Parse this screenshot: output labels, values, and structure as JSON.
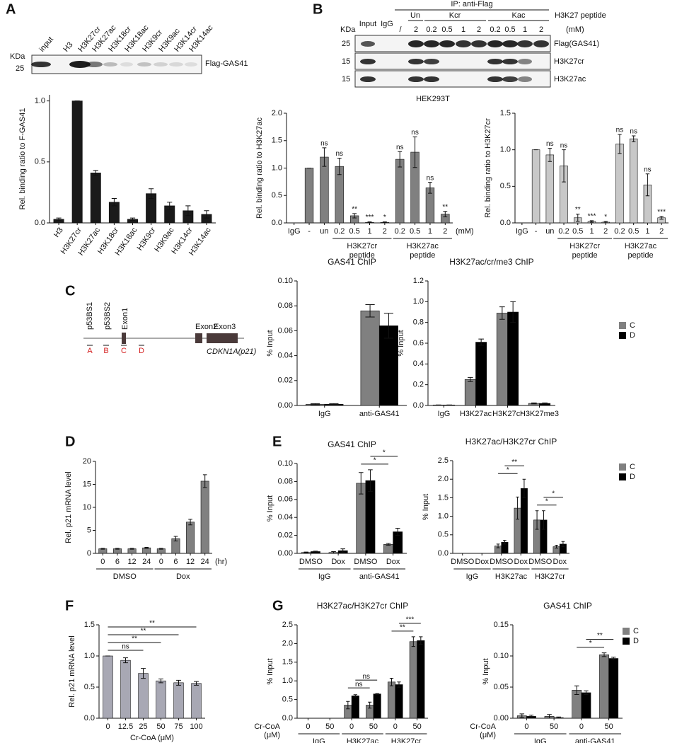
{
  "panels": [
    "A",
    "B",
    "C",
    "D",
    "E",
    "F",
    "G"
  ],
  "blot_a": {
    "kda": "KDa",
    "marker": "25",
    "label": "Flag-GAS41",
    "lanes": [
      "input",
      "H3",
      "H3K27cr",
      "H3K27ac",
      "H3K18cr",
      "H3K18ac",
      "H3K9cr",
      "H3K9ac",
      "H3K14cr",
      "H3K14ac"
    ]
  },
  "blot_b": {
    "header": "IP: anti-Flag",
    "peptide": "H3K27 peptide",
    "unit": "(mM)",
    "kda": "KDa",
    "groups": [
      "Un",
      "Kcr",
      "Kac"
    ],
    "lanes": [
      "Input",
      "IgG",
      "/",
      "2",
      "0.2",
      "0.5",
      "1",
      "2",
      "0.2",
      "0.5",
      "1",
      "2"
    ],
    "rows": [
      {
        "kda": "25",
        "label": "Flag(GAS41)"
      },
      {
        "kda": "15",
        "label": "H3K27cr"
      },
      {
        "kda": "15",
        "label": "H3K27ac"
      }
    ],
    "cell": "HEK293T"
  },
  "gene_diagram": {
    "sites": [
      "p53BS1",
      "p53BS2",
      "Exon1"
    ],
    "exons": [
      "Exon2",
      "Exon3"
    ],
    "primers": [
      "A",
      "B",
      "C",
      "D"
    ],
    "gene": "CDKN1A(p21)"
  },
  "chart_data": [
    {
      "type": "bar",
      "ylabel": "Rel. binding ratio to F-GAS41",
      "categories": [
        "H3",
        "H3K27cr",
        "H3K27ac",
        "H3K18cr",
        "H3K18ac",
        "H3K9cr",
        "H3K9ac",
        "H3K14cr",
        "H3K14ac"
      ],
      "values": [
        0.03,
        1.0,
        0.41,
        0.17,
        0.03,
        0.24,
        0.14,
        0.1,
        0.07
      ],
      "errors": [
        0.01,
        0,
        0.02,
        0.03,
        0.01,
        0.04,
        0.03,
        0.04,
        0.03
      ],
      "color": "#1a1a1a",
      "ylim": [
        0,
        1.05
      ],
      "yticks": [
        {
          "value": 0,
          "label": "0.0"
        },
        0.5,
        {
          "value": 1,
          "label": "1.0"
        }
      ]
    },
    {
      "type": "bar",
      "ylabel": "Rel. binding ratio to H3K27ac",
      "categories": [
        "IgG",
        "-",
        "un",
        "0.2",
        "0.5",
        "1",
        "2",
        "0.2",
        "0.5",
        "1",
        "2"
      ],
      "values": [
        0,
        1.0,
        1.2,
        1.03,
        0.13,
        0.01,
        0.01,
        1.16,
        1.29,
        0.64,
        0.16
      ],
      "errors": [
        0,
        0,
        0.17,
        0.15,
        0.04,
        0.01,
        0.01,
        0.14,
        0.28,
        0.1,
        0.05
      ],
      "sig": [
        null,
        null,
        "ns",
        "ns",
        "**",
        "***",
        "*",
        "ns",
        "ns",
        "ns",
        "**"
      ],
      "groups": [
        {
          "label": "H3K27cr",
          "sublabel": "peptide",
          "start": 3,
          "end": 6
        },
        {
          "label": "H3K27ac",
          "sublabel": "peptide",
          "start": 7,
          "end": 10
        }
      ],
      "unit": "(mM)",
      "color": "#808080",
      "ylim": [
        0,
        2
      ],
      "yticks": [
        {
          "value": 0,
          "label": "0.0"
        },
        0.5,
        {
          "value": 1,
          "label": "1.0"
        },
        1.5,
        {
          "value": 2,
          "label": "2.0"
        }
      ]
    },
    {
      "type": "bar",
      "ylabel": "Rel. binding ratio to H3K27cr",
      "categories": [
        "IgG",
        "-",
        "un",
        "0.2",
        "0.5",
        "1",
        "2",
        "0.2",
        "0.5",
        "1",
        "2"
      ],
      "values": [
        0,
        1.0,
        0.93,
        0.78,
        0.07,
        0.02,
        0.01,
        1.08,
        1.15,
        0.52,
        0.07
      ],
      "errors": [
        0,
        0,
        0.09,
        0.22,
        0.05,
        0.01,
        0.01,
        0.13,
        0.04,
        0.15,
        0.02
      ],
      "sig": [
        null,
        null,
        "ns",
        "ns",
        "**",
        "***",
        "*",
        "ns",
        "ns",
        "ns",
        "***"
      ],
      "groups": [
        {
          "label": "H3K27cr",
          "sublabel": "peptide",
          "start": 3,
          "end": 6
        },
        {
          "label": "H3K27ac",
          "sublabel": "peptide",
          "start": 7,
          "end": 10
        }
      ],
      "color": "#c8c8c8",
      "ylim": [
        0,
        1.5
      ],
      "yticks": [
        {
          "value": 0,
          "label": "0.0"
        },
        0.5,
        {
          "value": 1,
          "label": "1.0"
        },
        1.5
      ]
    },
    {
      "type": "bar",
      "title": "GAS41 ChIP",
      "ylabel": "% Input",
      "categories": [
        "IgG",
        "anti-GAS41"
      ],
      "series": [
        {
          "name": "C",
          "color": "#808080",
          "values": [
            0.001,
            0.076
          ],
          "errors": [
            0.0005,
            0.005
          ]
        },
        {
          "name": "D",
          "color": "#000000",
          "values": [
            0.001,
            0.064
          ],
          "errors": [
            0.0005,
            0.01
          ]
        }
      ],
      "ylim": [
        0,
        0.1
      ],
      "yticks": [
        {
          "value": 0,
          "label": "0.00"
        },
        0.02,
        0.04,
        0.06,
        0.08,
        {
          "value": 0.1,
          "label": "0.10"
        }
      ]
    },
    {
      "type": "bar",
      "title": "H3K27ac/cr/me3 ChIP",
      "ylabel": "% Input",
      "categories": [
        "IgG",
        "H3K27ac",
        "H3K27cr",
        "H3K27me3"
      ],
      "series": [
        {
          "name": "C",
          "color": "#808080",
          "values": [
            0.005,
            0.25,
            0.89,
            0.02
          ],
          "errors": [
            0,
            0.02,
            0.06,
            0.005
          ]
        },
        {
          "name": "D",
          "color": "#000000",
          "values": [
            0.005,
            0.61,
            0.9,
            0.02
          ],
          "errors": [
            0,
            0.03,
            0.1,
            0.005
          ]
        }
      ],
      "legend": "right",
      "ylim": [
        0,
        1.2
      ],
      "yticks": [
        {
          "value": 0,
          "label": "0.0"
        },
        0.2,
        0.4,
        0.6,
        0.8,
        {
          "value": 1,
          "label": "1.0"
        },
        1.2
      ]
    },
    {
      "type": "bar",
      "ylabel": "Rel. p21 mRNA level",
      "categories": [
        "0",
        "6",
        "12",
        "24",
        "0",
        "6",
        "12",
        "24"
      ],
      "values": [
        1,
        1,
        1,
        1.2,
        1,
        3.2,
        6.8,
        15.7
      ],
      "errors": [
        0.1,
        0.1,
        0.1,
        0.1,
        0.1,
        0.5,
        0.6,
        1.4
      ],
      "groups": [
        {
          "label": "DMSO",
          "start": 0,
          "end": 3
        },
        {
          "label": "Dox",
          "start": 4,
          "end": 7
        }
      ],
      "unit": "(hr)",
      "color": "#808080",
      "ylim": [
        0,
        20
      ],
      "yticks": [
        0,
        5,
        10,
        15,
        20
      ]
    },
    {
      "type": "bar",
      "title": "GAS41 ChIP",
      "ylabel": "% Input",
      "categories": [
        "DMSO",
        "Dox",
        "DMSO",
        "Dox"
      ],
      "series": [
        {
          "name": "C",
          "color": "#808080",
          "values": [
            0.001,
            0.001,
            0.078,
            0.01
          ],
          "errors": [
            0.0005,
            0.001,
            0.012,
            0.001
          ]
        },
        {
          "name": "D",
          "color": "#000000",
          "values": [
            0.002,
            0.003,
            0.081,
            0.024
          ],
          "errors": [
            0.0005,
            0.002,
            0.012,
            0.004
          ]
        }
      ],
      "groups": [
        {
          "label": "IgG",
          "start": 0,
          "end": 1
        },
        {
          "label": "anti-GAS41",
          "start": 2,
          "end": 3
        }
      ],
      "brackets": [
        {
          "from": [
            2,
            0
          ],
          "to": [
            3,
            0
          ],
          "label": "*"
        },
        {
          "from": [
            2,
            1
          ],
          "to": [
            3,
            1
          ],
          "label": "*"
        }
      ],
      "ylim": [
        0,
        0.1
      ],
      "yticks": [
        {
          "value": 0,
          "label": "0.00"
        },
        0.02,
        0.04,
        0.06,
        0.08,
        {
          "value": 0.1,
          "label": "0.10"
        }
      ]
    },
    {
      "type": "bar",
      "title": "H3K27ac/H3K27cr ChIP",
      "ylabel": "% Input",
      "categories": [
        "DMSO",
        "Dox",
        "DMSO",
        "Dox",
        "DMSO",
        "Dox"
      ],
      "series": [
        {
          "name": "C",
          "color": "#808080",
          "values": [
            0,
            0,
            0.2,
            1.22,
            0.9,
            0.18
          ],
          "errors": [
            0,
            0,
            0.05,
            0.3,
            0.25,
            0.04
          ]
        },
        {
          "name": "D",
          "color": "#000000",
          "values": [
            0,
            0,
            0.3,
            1.75,
            0.9,
            0.25
          ],
          "errors": [
            0,
            0,
            0.05,
            0.25,
            0.25,
            0.07
          ]
        }
      ],
      "groups": [
        {
          "label": "IgG",
          "start": 0,
          "end": 1
        },
        {
          "label": "H3K27ac",
          "start": 2,
          "end": 3
        },
        {
          "label": "H3K27cr",
          "start": 4,
          "end": 5
        }
      ],
      "brackets": [
        {
          "from": [
            2,
            0
          ],
          "to": [
            3,
            0
          ],
          "label": "*"
        },
        {
          "from": [
            2,
            1
          ],
          "to": [
            3,
            1
          ],
          "label": "**"
        },
        {
          "from": [
            4,
            0
          ],
          "to": [
            5,
            0
          ],
          "label": "*"
        },
        {
          "from": [
            4,
            1
          ],
          "to": [
            5,
            1
          ],
          "label": "*"
        }
      ],
      "legend": "right",
      "ylim": [
        0,
        2.5
      ],
      "yticks": [
        {
          "value": 0,
          "label": "0.0"
        },
        0.5,
        {
          "value": 1,
          "label": "1.0"
        },
        1.5,
        {
          "value": 2,
          "label": "2.0"
        },
        2.5
      ]
    },
    {
      "type": "bar",
      "ylabel": "Rel. p21 mRNA level",
      "xlabel": "Cr-CoA (μM)",
      "categories": [
        "0",
        "12.5",
        "25",
        "50",
        "75",
        "100"
      ],
      "values": [
        1.0,
        0.93,
        0.72,
        0.6,
        0.57,
        0.56
      ],
      "errors": [
        0,
        0.04,
        0.08,
        0.03,
        0.04,
        0.03
      ],
      "brackets": [
        {
          "from": [
            0,
            0
          ],
          "to": [
            2,
            0
          ],
          "label": "ns"
        },
        {
          "from": [
            0,
            0
          ],
          "to": [
            3,
            0
          ],
          "label": "**"
        },
        {
          "from": [
            0,
            0
          ],
          "to": [
            4,
            0
          ],
          "label": "**"
        },
        {
          "from": [
            0,
            0
          ],
          "to": [
            5,
            0
          ],
          "label": "**"
        }
      ],
      "color": "#a8a8b4",
      "ylim": [
        0,
        1.5
      ],
      "yticks": [
        {
          "value": 0,
          "label": "0.0"
        },
        0.5,
        {
          "value": 1,
          "label": "1.0"
        },
        1.5
      ]
    },
    {
      "type": "bar",
      "title": "H3K27ac/H3K27cr ChIP",
      "ylabel": "% Input",
      "row_label": [
        "Cr-CoA",
        "(μM)"
      ],
      "categories": [
        "0",
        "50",
        "0",
        "50",
        "0",
        "50"
      ],
      "series": [
        {
          "name": "C",
          "color": "#808080",
          "values": [
            0,
            0,
            0.35,
            0.35,
            0.97,
            2.05
          ],
          "errors": [
            0,
            0,
            0.1,
            0.08,
            0.1,
            0.13
          ]
        },
        {
          "name": "D",
          "color": "#000000",
          "values": [
            0,
            0,
            0.6,
            0.65,
            0.9,
            2.08
          ],
          "errors": [
            0,
            0,
            0.03,
            0.01,
            0.07,
            0.1
          ]
        }
      ],
      "groups": [
        {
          "label": "IgG",
          "start": 0,
          "end": 1
        },
        {
          "label": "H3K27ac",
          "start": 2,
          "end": 3
        },
        {
          "label": "H3K27cr",
          "start": 4,
          "end": 5
        }
      ],
      "brackets": [
        {
          "from": [
            2,
            0
          ],
          "to": [
            3,
            0
          ],
          "label": "ns"
        },
        {
          "from": [
            2,
            1
          ],
          "to": [
            3,
            1
          ],
          "label": "ns"
        },
        {
          "from": [
            4,
            0
          ],
          "to": [
            5,
            0
          ],
          "label": "**"
        },
        {
          "from": [
            4,
            1
          ],
          "to": [
            5,
            1
          ],
          "label": "***"
        }
      ],
      "ylim": [
        0,
        2.5
      ],
      "yticks": [
        {
          "value": 0,
          "label": "0.0"
        },
        0.5,
        {
          "value": 1,
          "label": "1.0"
        },
        1.5,
        {
          "value": 2,
          "label": "2.0"
        },
        2.5
      ]
    },
    {
      "type": "bar",
      "title": "GAS41 ChIP",
      "ylabel": "% Input",
      "row_label": [
        "Cr-CoA",
        "(μM)"
      ],
      "categories": [
        "0",
        "50",
        "0",
        "50"
      ],
      "series": [
        {
          "name": "C",
          "color": "#808080",
          "values": [
            0.004,
            0.003,
            0.045,
            0.102
          ],
          "errors": [
            0.003,
            0.003,
            0.007,
            0.003
          ]
        },
        {
          "name": "D",
          "color": "#000000",
          "values": [
            0.003,
            0.001,
            0.041,
            0.096
          ],
          "errors": [
            0.002,
            0.001,
            0.003,
            0.002
          ]
        }
      ],
      "groups": [
        {
          "label": "IgG",
          "start": 0,
          "end": 1
        },
        {
          "label": "anti-GAS41",
          "start": 2,
          "end": 3
        }
      ],
      "brackets": [
        {
          "from": [
            2,
            0
          ],
          "to": [
            3,
            0
          ],
          "label": "*"
        },
        {
          "from": [
            2,
            1
          ],
          "to": [
            3,
            1
          ],
          "label": "**"
        }
      ],
      "legend": "right",
      "ylim": [
        0,
        0.15
      ],
      "yticks": [
        {
          "value": 0,
          "label": "0.00"
        },
        0.05,
        {
          "value": 0.1,
          "label": "0.10"
        },
        0.15
      ]
    }
  ]
}
